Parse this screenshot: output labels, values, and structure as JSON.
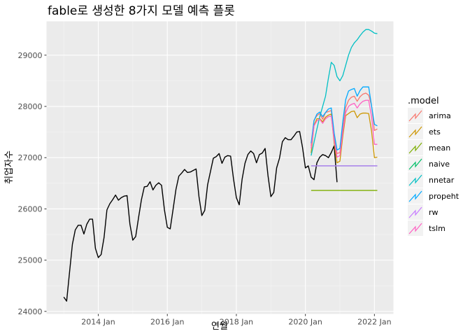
{
  "chart_data": {
    "type": "line",
    "title": "fable로 생성한 8가지 모델 예측 플롯",
    "xlabel": "연월",
    "ylabel": "취업자수",
    "xlim": [
      2012.5,
      2022.55
    ],
    "ylim": [
      23950,
      29660
    ],
    "x_ticks": [
      2014,
      2016,
      2018,
      2020,
      2022
    ],
    "x_tick_labels": [
      "2014 Jan",
      "2016 Jan",
      "2018 Jan",
      "2020 Jan",
      "2022 Jan"
    ],
    "y_ticks": [
      24000,
      25000,
      26000,
      27000,
      28000,
      29000
    ],
    "y_tick_labels": [
      "24000",
      "25000",
      "26000",
      "27000",
      "28000",
      "29000"
    ],
    "grid": true,
    "legend": {
      "title": ".model",
      "position": "right",
      "entries": [
        "arima",
        "ets",
        "mean",
        "naive",
        "nnetar",
        "propeht",
        "rw",
        "tslm"
      ]
    },
    "actual": {
      "color": "#000000",
      "x": [
        "2013-01",
        "2013-02",
        "2013-03",
        "2013-04",
        "2013-05",
        "2013-06",
        "2013-07",
        "2013-08",
        "2013-09",
        "2013-10",
        "2013-11",
        "2013-12",
        "2014-01",
        "2014-02",
        "2014-03",
        "2014-04",
        "2014-05",
        "2014-06",
        "2014-07",
        "2014-08",
        "2014-09",
        "2014-10",
        "2014-11",
        "2014-12",
        "2015-01",
        "2015-02",
        "2015-03",
        "2015-04",
        "2015-05",
        "2015-06",
        "2015-07",
        "2015-08",
        "2015-09",
        "2015-10",
        "2015-11",
        "2015-12",
        "2016-01",
        "2016-02",
        "2016-03",
        "2016-04",
        "2016-05",
        "2016-06",
        "2016-07",
        "2016-08",
        "2016-09",
        "2016-10",
        "2016-11",
        "2016-12",
        "2017-01",
        "2017-02",
        "2017-03",
        "2017-04",
        "2017-05",
        "2017-06",
        "2017-07",
        "2017-08",
        "2017-09",
        "2017-10",
        "2017-11",
        "2017-12",
        "2018-01",
        "2018-02",
        "2018-03",
        "2018-04",
        "2018-05",
        "2018-06",
        "2018-07",
        "2018-08",
        "2018-09",
        "2018-10",
        "2018-11",
        "2018-12",
        "2019-01",
        "2019-02",
        "2019-03",
        "2019-04",
        "2019-05",
        "2019-06",
        "2019-07",
        "2019-08",
        "2019-09",
        "2019-10",
        "2019-11",
        "2019-12",
        "2020-01",
        "2020-02",
        "2020-03",
        "2020-04",
        "2020-05",
        "2020-06",
        "2020-07",
        "2020-08",
        "2020-09",
        "2020-10",
        "2020-11",
        "2020-12"
      ],
      "values": [
        24280,
        24200,
        24760,
        25310,
        25590,
        25680,
        25680,
        25510,
        25700,
        25800,
        25800,
        25230,
        25050,
        25110,
        25440,
        25980,
        26100,
        26180,
        26270,
        26170,
        26220,
        26250,
        26260,
        25700,
        25390,
        25460,
        25830,
        26180,
        26430,
        26440,
        26530,
        26370,
        26460,
        26510,
        26460,
        25980,
        25640,
        25610,
        25990,
        26380,
        26640,
        26700,
        26770,
        26710,
        26720,
        26750,
        26780,
        26240,
        25870,
        25970,
        26470,
        26730,
        26990,
        27020,
        27080,
        26890,
        27010,
        27040,
        27030,
        26590,
        26220,
        26080,
        26580,
        26890,
        27060,
        27130,
        27080,
        26900,
        27060,
        27090,
        27180,
        26650,
        26240,
        26320,
        26800,
        26990,
        27310,
        27390,
        27350,
        27350,
        27420,
        27500,
        27510,
        27200,
        26800,
        26840,
        26620,
        26570,
        26900,
        27010,
        27060,
        27040,
        27000,
        27100,
        27230,
        26520
      ]
    },
    "forecast_x": [
      "2020-03",
      "2020-04",
      "2020-05",
      "2020-06",
      "2020-07",
      "2020-08",
      "2020-09",
      "2020-10",
      "2020-11",
      "2020-12",
      "2021-01",
      "2021-02",
      "2021-03",
      "2021-04",
      "2021-05",
      "2021-06",
      "2021-07",
      "2021-08",
      "2021-09",
      "2021-10",
      "2021-11",
      "2021-12",
      "2022-01",
      "2022-02"
    ],
    "series": [
      {
        "name": "arima",
        "color": "#F8766D",
        "values": [
          27230,
          27730,
          27820,
          27860,
          27750,
          27880,
          27900,
          27920,
          27400,
          27080,
          27100,
          27560,
          27980,
          28120,
          28180,
          28200,
          28100,
          28190,
          28240,
          28260,
          28220,
          28020,
          27530,
          27560
        ]
      },
      {
        "name": "ets",
        "color": "#CD9600",
        "values": [
          27090,
          27630,
          27760,
          27760,
          27700,
          27790,
          27830,
          27850,
          27290,
          26900,
          26930,
          27420,
          27820,
          27860,
          27900,
          27910,
          27780,
          27850,
          27870,
          27870,
          27860,
          27520,
          27000,
          27010
        ]
      },
      {
        "name": "mean",
        "color": "#7CAE00",
        "values": [
          26360,
          26360,
          26360,
          26360,
          26360,
          26360,
          26360,
          26360,
          26360,
          26360,
          26360,
          26360,
          26360,
          26360,
          26360,
          26360,
          26360,
          26360,
          26360,
          26360,
          26360,
          26360,
          26360,
          26360
        ]
      },
      {
        "name": "naive",
        "color": "#00BE67",
        "values": [
          26840,
          26840,
          26840,
          26840,
          26840,
          26840,
          26840,
          26840,
          26840,
          26840,
          26840,
          26840,
          26840,
          26840,
          26840,
          26840,
          26840,
          26840,
          26840,
          26840,
          26840,
          26840,
          26840,
          26840
        ]
      },
      {
        "name": "nnetar",
        "color": "#00BFC4",
        "values": [
          27040,
          27300,
          27560,
          27800,
          28000,
          28200,
          28550,
          28860,
          28800,
          28580,
          28500,
          28600,
          28800,
          29000,
          29150,
          29240,
          29300,
          29380,
          29450,
          29500,
          29500,
          29470,
          29430,
          29420
        ]
      },
      {
        "name": "propeht",
        "color": "#00A9FF",
        "values": [
          27280,
          27720,
          27850,
          27890,
          27800,
          27880,
          27950,
          27970,
          27480,
          27150,
          27180,
          27700,
          28130,
          28300,
          28330,
          28350,
          28200,
          28310,
          28380,
          28380,
          28380,
          28010,
          27650,
          27620
        ]
      },
      {
        "name": "rw",
        "color": "#C77CFF",
        "values": [
          26840,
          26840,
          26840,
          26840,
          26840,
          26840,
          26840,
          26840,
          26840,
          26840,
          26840,
          26840,
          26840,
          26840,
          26840,
          26840,
          26840,
          26840,
          26840,
          26840,
          26840,
          26840,
          26840,
          26840
        ]
      },
      {
        "name": "tslm",
        "color": "#FF61C3",
        "values": [
          27180,
          27620,
          27720,
          27750,
          27670,
          27760,
          27800,
          27810,
          27340,
          27010,
          27040,
          27500,
          27880,
          28000,
          28040,
          28060,
          27970,
          28050,
          28100,
          28120,
          28120,
          27800,
          27260,
          27260
        ]
      }
    ]
  }
}
